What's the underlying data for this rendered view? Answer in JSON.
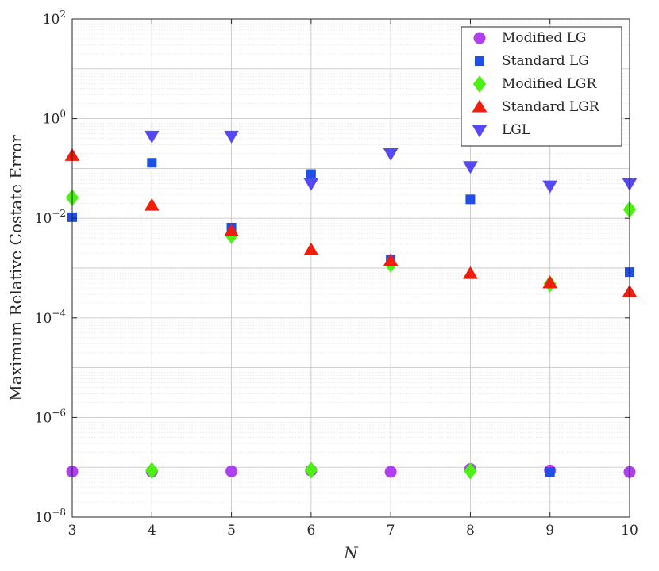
{
  "chart_data": {
    "type": "scatter",
    "xlabel": "N",
    "ylabel": "Maximum Relative Costate Error",
    "yscale": "log",
    "xlim": [
      3,
      10
    ],
    "ylim": [
      1e-08,
      100
    ],
    "grid": true,
    "legend_position": "top-right",
    "x_ticks": [
      "3",
      "4",
      "5",
      "6",
      "7",
      "8",
      "9",
      "10"
    ],
    "y_ticks": [
      {
        "value": 1e-08,
        "base": "10",
        "exp": "−8"
      },
      {
        "value": 1e-06,
        "base": "10",
        "exp": "−6"
      },
      {
        "value": 0.0001,
        "base": "10",
        "exp": "−4"
      },
      {
        "value": 0.01,
        "base": "10",
        "exp": "−2"
      },
      {
        "value": 1,
        "base": "10",
        "exp": "0"
      },
      {
        "value": 100,
        "base": "10",
        "exp": "2"
      }
    ],
    "series": [
      {
        "name": "Modified LG",
        "marker": "circle",
        "color": "#b03ff0",
        "x": [
          3,
          4,
          5,
          6,
          7,
          8,
          9,
          10
        ],
        "y": [
          8.2e-08,
          8.2e-08,
          8.3e-08,
          8.6e-08,
          8.1e-08,
          9.2e-08,
          8.6e-08,
          8e-08
        ]
      },
      {
        "name": "Standard LG",
        "marker": "square",
        "color": "#1f4fe6",
        "x": [
          3,
          4,
          5,
          6,
          7,
          8,
          9,
          10
        ],
        "y": [
          0.0105,
          0.13,
          0.0065,
          0.077,
          0.0015,
          0.024,
          8e-08,
          0.00083
        ]
      },
      {
        "name": "Modified LGR",
        "marker": "diamond",
        "color": "#4cf012",
        "x": [
          3,
          4,
          5,
          6,
          7,
          8,
          9,
          10
        ],
        "y": [
          0.026,
          8.6e-08,
          0.0045,
          8.8e-08,
          0.0012,
          8.4e-08,
          0.00048,
          0.015
        ]
      },
      {
        "name": "Standard LGR",
        "marker": "triangle-up",
        "color": "#f01c0c",
        "x": [
          3,
          4,
          5,
          6,
          7,
          8,
          9,
          10
        ],
        "y": [
          0.18,
          0.018,
          0.0055,
          0.0023,
          0.0014,
          0.00077,
          0.0005,
          0.00033
        ]
      },
      {
        "name": "LGL",
        "marker": "triangle-down",
        "color": "#5548f5",
        "x": [
          4,
          5,
          6,
          7,
          8,
          9,
          10
        ],
        "y": [
          0.45,
          0.45,
          0.05,
          0.2,
          0.11,
          0.045,
          0.05
        ]
      }
    ]
  }
}
